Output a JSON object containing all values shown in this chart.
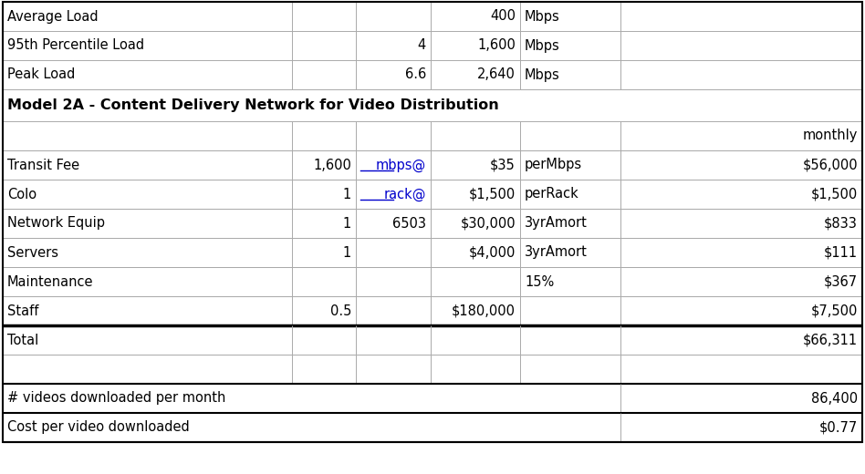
{
  "title": "Model 2A - Content Delivery Network for Video Distribution",
  "background_color": "#ffffff",
  "header_rows": [
    [
      "Average Load",
      "",
      "",
      "400",
      "Mbps",
      ""
    ],
    [
      "95th Percentile Load",
      "",
      "4",
      "1,600",
      "Mbps",
      ""
    ],
    [
      "Peak Load",
      "",
      "6.6",
      "2,640",
      "Mbps",
      ""
    ]
  ],
  "col_header": [
    "",
    "",
    "",
    "",
    "",
    "monthly"
  ],
  "data_rows": [
    [
      "Transit Fee",
      "1,600",
      "mbps@",
      "$35",
      "perMbps",
      "$56,000"
    ],
    [
      "Colo",
      "1",
      "rack@",
      "$1,500",
      "perRack",
      "$1,500"
    ],
    [
      "Network Equip",
      "1",
      "6503",
      "$30,000",
      "3yrAmort",
      "$833"
    ],
    [
      "Servers",
      "1",
      "",
      "$4,000",
      "3yrAmort",
      "$111"
    ],
    [
      "Maintenance",
      "",
      "",
      "",
      "15%",
      "$367"
    ],
    [
      "Staff",
      "0.5",
      "",
      "$180,000",
      "",
      "$7,500"
    ],
    [
      "Total",
      "",
      "",
      "",
      "",
      "$66,311"
    ],
    [
      "",
      "",
      "",
      "",
      "",
      ""
    ],
    [
      "# videos downloaded per month",
      "",
      "",
      "",
      "",
      "86,400"
    ],
    [
      "Cost per video downloaded",
      "",
      "",
      "",
      "",
      "$0.77"
    ]
  ],
  "blue_link_rows": [
    0,
    1
  ],
  "blue_link_col": 2,
  "col_aligns": [
    "left",
    "right",
    "right",
    "right",
    "left",
    "right"
  ],
  "border_color": "#aaaaaa",
  "thick_color": "#000000",
  "text_color": "#000000",
  "blue_color": "#0000cc",
  "fontsize": 10.5,
  "title_fontsize": 11.5
}
